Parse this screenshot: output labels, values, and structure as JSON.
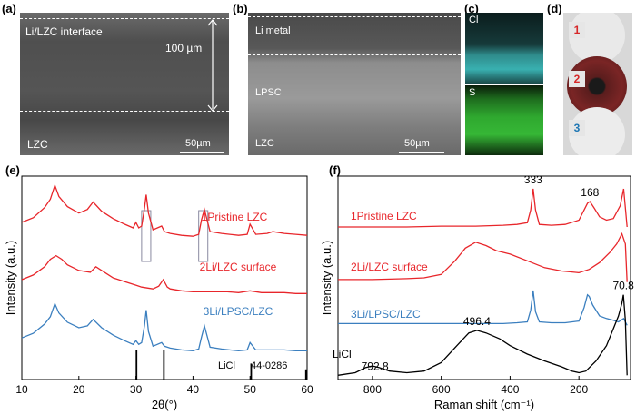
{
  "panels": {
    "a": {
      "letter": "(a)",
      "interface_label": "Li/LZC interface",
      "lzc_label": "LZC",
      "thickness_label": "100 µm",
      "scale_label": "50µm"
    },
    "b": {
      "letter": "(b)",
      "li_label": "Li metal",
      "lpsc_label": "LPSC",
      "lzc_label": "LZC",
      "scale_label": "50µm"
    },
    "c": {
      "letter": "(c)",
      "map1_label": "Cl",
      "map2_label": "S",
      "map1_color": "#3ec6c6",
      "map2_color": "#2fa82f"
    },
    "d": {
      "letter": "(d)",
      "labels": [
        "1",
        "2",
        "3"
      ],
      "label_colors": [
        "#d62728",
        "#d62728",
        "#1f77b4"
      ]
    },
    "e": {
      "letter": "(e)"
    },
    "f": {
      "letter": "(f)"
    }
  },
  "chart_data": [
    {
      "type": "line",
      "title": "",
      "xlabel": "2θ(°)",
      "ylabel": "Intensity (a.u.)",
      "xlim": [
        10,
        60
      ],
      "xticks": [
        10,
        20,
        30,
        40,
        50,
        60
      ],
      "yticks": "none",
      "series": [
        {
          "name": "1Pristine LZC",
          "color": "#e8262b",
          "offset": 140,
          "x": [
            10,
            12,
            14,
            15,
            15.8,
            16.5,
            18,
            20,
            21.5,
            22.5,
            24,
            26,
            28,
            29.5,
            30,
            30.5,
            31,
            31.5,
            31.8,
            32.2,
            33,
            34.5,
            35,
            36,
            38,
            40,
            41,
            41.5,
            42,
            43,
            45,
            48,
            49.5,
            50,
            51,
            53,
            54,
            56,
            58,
            60
          ],
          "y": [
            30,
            35,
            46,
            55,
            70,
            58,
            47,
            40,
            44,
            52,
            42,
            34,
            28,
            24,
            30,
            24,
            26,
            45,
            60,
            40,
            22,
            26,
            20,
            18,
            16,
            15,
            17,
            33,
            44,
            20,
            18,
            16,
            17,
            28,
            17,
            18,
            20,
            18,
            17,
            16
          ]
        },
        {
          "name": "2Li/LZC surface",
          "color": "#e8262b",
          "offset": 80,
          "x": [
            10,
            12,
            14,
            15,
            16,
            17,
            18,
            20,
            22,
            23,
            24,
            26,
            28,
            30,
            31,
            32,
            33,
            34,
            34.8,
            35.5,
            36,
            38,
            40,
            42,
            44,
            46,
            48,
            50,
            52,
            54,
            56,
            58,
            60
          ],
          "y": [
            28,
            33,
            42,
            50,
            54,
            50,
            44,
            38,
            36,
            42,
            38,
            30,
            26,
            22,
            20,
            19,
            18,
            21,
            28,
            20,
            18,
            16,
            15,
            15,
            15,
            15,
            14,
            16,
            14,
            14,
            14,
            13,
            13
          ]
        },
        {
          "name": "3Li/LPSC/LZC",
          "color": "#3b7fbf",
          "offset": 20,
          "x": [
            10,
            12,
            14,
            15,
            15.8,
            16.5,
            18,
            20,
            21.5,
            22.5,
            24,
            26,
            28,
            29.5,
            30,
            30.5,
            31,
            31.5,
            31.8,
            32.2,
            33,
            34.5,
            35,
            36,
            38,
            40,
            41,
            41.5,
            42,
            43,
            45,
            48,
            49.5,
            50,
            51,
            53,
            56,
            58,
            60
          ],
          "y": [
            25,
            30,
            40,
            48,
            62,
            52,
            42,
            36,
            38,
            45,
            36,
            28,
            22,
            18,
            22,
            18,
            20,
            38,
            55,
            32,
            16,
            20,
            16,
            14,
            12,
            11,
            13,
            26,
            38,
            15,
            13,
            11,
            12,
            20,
            12,
            12,
            12,
            11,
            11
          ]
        }
      ],
      "reference": {
        "name": "LiCl",
        "card": "44-0286",
        "positions": [
          30.1,
          34.9,
          50.2,
          59.8
        ],
        "heights": [
          1,
          1,
          0.55,
          0.35
        ]
      },
      "highlight_boxes": [
        [
          31,
          32.6
        ],
        [
          41,
          42.6
        ]
      ]
    },
    {
      "type": "line",
      "title": "",
      "xlabel": "Raman shift (cm⁻¹)",
      "ylabel": "Intensity (a.u.)",
      "xlim": [
        900,
        50
      ],
      "xticks": [
        800,
        600,
        400,
        200
      ],
      "yticks": "none",
      "series": [
        {
          "name": "1Pristine LZC",
          "color": "#e8262b",
          "offset": 170,
          "x": [
            900,
            800,
            700,
            600,
            500,
            420,
            380,
            350,
            340,
            333,
            326,
            315,
            280,
            240,
            200,
            185,
            175,
            168,
            155,
            140,
            120,
            100,
            80,
            70,
            60
          ],
          "y": [
            10,
            10,
            10,
            11,
            11,
            12,
            13,
            15,
            30,
            55,
            30,
            13,
            12,
            13,
            18,
            30,
            38,
            40,
            32,
            22,
            18,
            20,
            35,
            55,
            10
          ]
        },
        {
          "name": "2Li/LZC surface",
          "color": "#e8262b",
          "offset": 110,
          "x": [
            900,
            800,
            700,
            650,
            600,
            560,
            530,
            500,
            470,
            440,
            400,
            350,
            300,
            250,
            200,
            170,
            140,
            110,
            90,
            75,
            65,
            60
          ],
          "y": [
            8,
            8,
            9,
            10,
            14,
            30,
            45,
            52,
            48,
            42,
            38,
            30,
            22,
            18,
            16,
            20,
            28,
            40,
            50,
            62,
            50,
            5
          ]
        },
        {
          "name": "3Li/LPSC/LZC",
          "color": "#3b7fbf",
          "offset": 60,
          "x": [
            900,
            800,
            700,
            600,
            500,
            420,
            380,
            350,
            340,
            333,
            326,
            315,
            280,
            240,
            200,
            185,
            175,
            170,
            160,
            140,
            120,
            100,
            85,
            70,
            60
          ],
          "y": [
            6,
            6,
            6,
            6,
            6,
            6,
            7,
            8,
            22,
            45,
            20,
            8,
            7,
            7,
            9,
            25,
            40,
            38,
            28,
            15,
            12,
            10,
            8,
            12,
            4
          ]
        },
        {
          "name": "LiCl",
          "color": "#000000",
          "offset": 0,
          "x": [
            900,
            850,
            820,
            800,
            780,
            750,
            700,
            650,
            600,
            550,
            520,
            496.4,
            470,
            430,
            400,
            350,
            300,
            250,
            220,
            200,
            180,
            150,
            120,
            100,
            85,
            75,
            70.8,
            65,
            60
          ],
          "y": [
            5,
            8,
            14,
            16,
            14,
            10,
            8,
            10,
            20,
            42,
            55,
            58,
            55,
            48,
            40,
            30,
            22,
            15,
            10,
            8,
            10,
            22,
            40,
            60,
            75,
            90,
            100,
            70,
            5
          ]
        }
      ],
      "peak_labels": [
        {
          "text": "333",
          "x": 333,
          "series": 0
        },
        {
          "text": "168",
          "x": 168,
          "series": 0
        },
        {
          "text": "496.4",
          "x": 496.4,
          "series": 3
        },
        {
          "text": "792.8",
          "x": 792.8,
          "series": 3
        },
        {
          "text": "70.8",
          "x": 70.8,
          "series": 3
        }
      ]
    }
  ]
}
